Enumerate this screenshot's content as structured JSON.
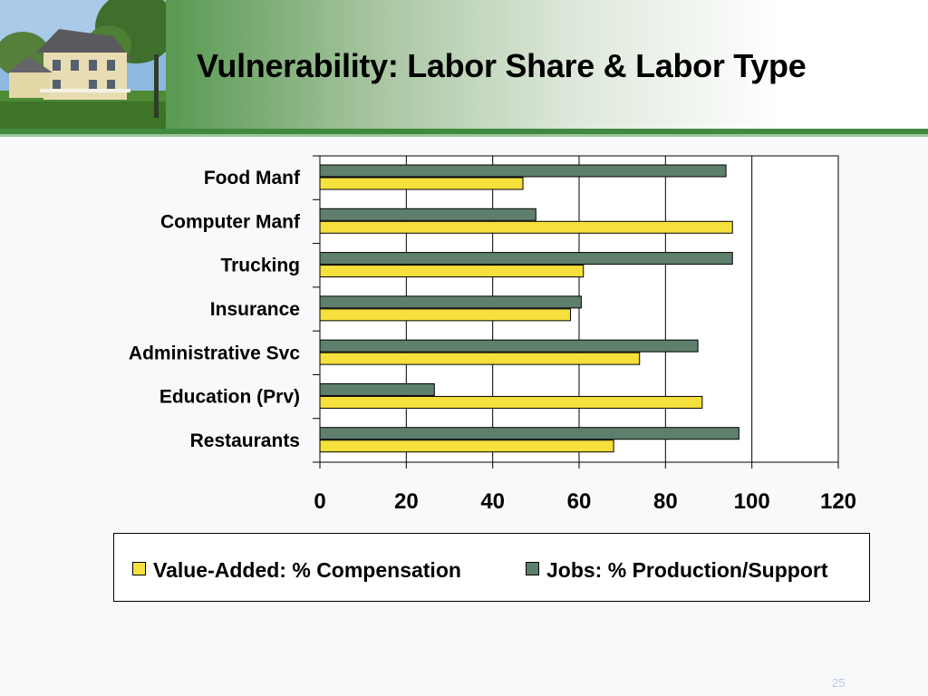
{
  "slide": {
    "title": "Vulnerability: Labor Share & Labor Type",
    "page_number": "25",
    "colors": {
      "header_green": "#3f8a3f",
      "background": "#f8f9fb"
    }
  },
  "chart_data": {
    "type": "bar",
    "orientation": "horizontal",
    "categories": [
      "Food Manf",
      "Computer Manf",
      "Trucking",
      "Insurance",
      "Administrative Svc",
      "Education (Prv)",
      "Restaurants"
    ],
    "series": [
      {
        "name": "Value-Added: % Compensation",
        "color": "#f5e03c",
        "values": [
          47,
          95.5,
          61,
          58,
          74,
          88.5,
          68
        ]
      },
      {
        "name": "Jobs: % Production/Support",
        "color": "#5f7f6d",
        "values": [
          94,
          50,
          95.5,
          60.5,
          87.5,
          26.5,
          97
        ]
      }
    ],
    "x_ticks": [
      "0",
      "20",
      "40",
      "60",
      "80",
      "100",
      "120"
    ],
    "xlim": [
      0,
      120
    ],
    "grid": "vertical gridlines",
    "legend_position": "bottom"
  }
}
